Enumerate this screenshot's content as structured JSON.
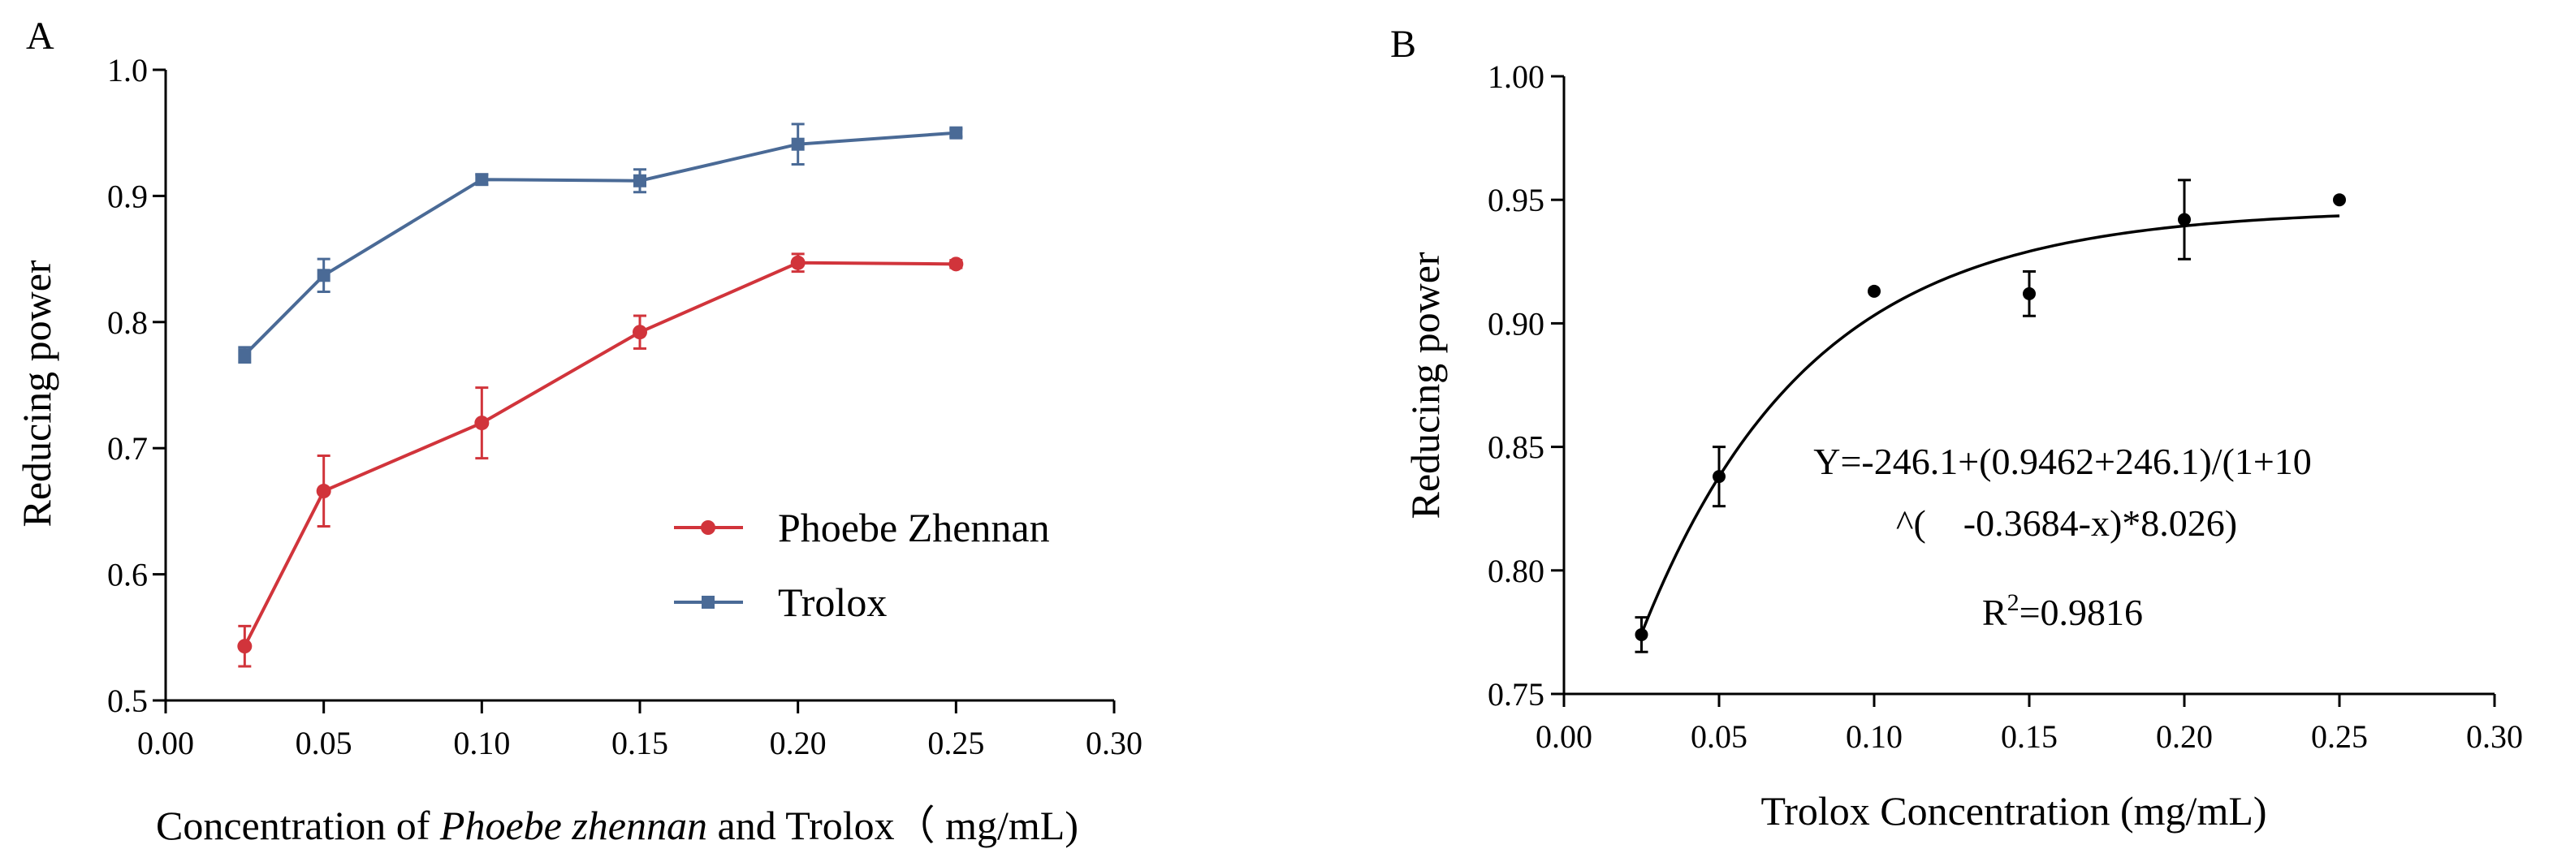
{
  "chart_data": [
    {
      "panel": "A",
      "type": "line",
      "title": "",
      "xlabel_parts": [
        "Concentration of ",
        "Phoebe zhennan",
        " and Trolox（ mg/mL)"
      ],
      "ylabel": "Reducing power",
      "xlim": [
        0.0,
        0.3
      ],
      "ylim": [
        0.5,
        1.0
      ],
      "x_ticks": [
        "0.00",
        "0.05",
        "0.10",
        "0.15",
        "0.20",
        "0.25",
        "0.30"
      ],
      "y_ticks": [
        "0.5",
        "0.6",
        "0.7",
        "0.8",
        "0.9",
        "1.0"
      ],
      "legend_position": "lower-right",
      "series": [
        {
          "name": "Phoebe Zhennan",
          "color": "#d1343b",
          "marker": "circle",
          "x": [
            0.025,
            0.05,
            0.1,
            0.15,
            0.2,
            0.25
          ],
          "y": [
            0.543,
            0.666,
            0.72,
            0.792,
            0.847,
            0.846
          ],
          "err": [
            0.016,
            0.028,
            0.028,
            0.013,
            0.007,
            0.003
          ]
        },
        {
          "name": "Trolox",
          "color": "#4a6a96",
          "marker": "square",
          "x": [
            0.025,
            0.05,
            0.1,
            0.15,
            0.2,
            0.25
          ],
          "y": [
            0.774,
            0.837,
            0.913,
            0.912,
            0.941,
            0.95
          ],
          "err": [
            0.006,
            0.013,
            0.004,
            0.009,
            0.016,
            0.003
          ]
        }
      ]
    },
    {
      "panel": "B",
      "type": "scatter",
      "title": "",
      "xlabel": "Trolox Concentration (mg/mL)",
      "ylabel": "Reducing power",
      "xlim": [
        0.0,
        0.3
      ],
      "ylim": [
        0.75,
        1.0
      ],
      "x_ticks": [
        "0.00",
        "0.05",
        "0.10",
        "0.15",
        "0.20",
        "0.25",
        "0.30"
      ],
      "y_ticks": [
        "0.75",
        "0.80",
        "0.85",
        "0.90",
        "0.95",
        "1.00"
      ],
      "series": [
        {
          "name": "Trolox",
          "color": "#000000",
          "x": [
            0.025,
            0.05,
            0.1,
            0.15,
            0.2,
            0.25
          ],
          "y": [
            0.774,
            0.838,
            0.913,
            0.912,
            0.942,
            0.95
          ],
          "err": [
            0.007,
            0.012,
            0.0,
            0.009,
            0.016,
            0.0
          ]
        }
      ],
      "fit": {
        "bottom": -246.1,
        "top": 0.9462,
        "logEC50": -0.3684,
        "hillslope": 8.026,
        "x_range": [
          0.025,
          0.25
        ],
        "color": "#000000"
      },
      "annotation": {
        "equation_line1": "Y=-246.1+(0.9462+246.1)/(1+10",
        "equation_line2": "^(　-0.3684-x)*8.026)",
        "r2_prefix": "R",
        "r2_sup": "2",
        "r2_value": "=0.9816"
      }
    }
  ]
}
